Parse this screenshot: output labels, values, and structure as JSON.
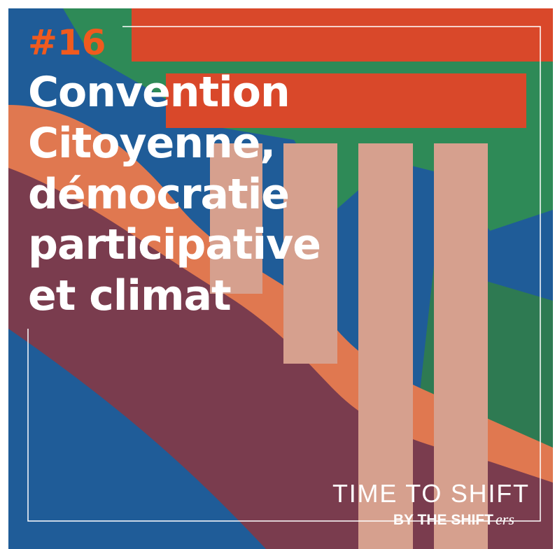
{
  "episode": "#16",
  "title_lines": [
    "Convention",
    "Citoyenne,",
    "démocratie",
    "participative",
    "et climat"
  ],
  "brand": {
    "name": "TIME TO SHIFT",
    "byline": "BY THE SHIFT",
    "byline_suffix": "ers"
  }
}
